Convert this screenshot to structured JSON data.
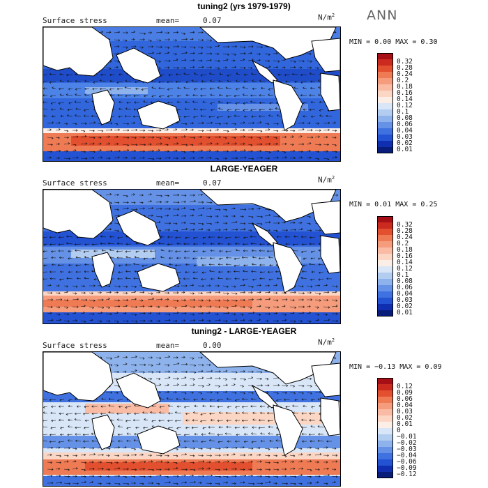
{
  "season": "ANN",
  "panels": [
    {
      "title": "tuning2 (yrs 1979-1979)",
      "variable": "Surface stress",
      "mean_label": "mean=",
      "mean": "0.07",
      "units": "N/m",
      "units_exp": "2",
      "min_label": "MIN =",
      "min": "0.00",
      "max_label": "MAX =",
      "max": "0.30",
      "colorbar": {
        "labels": [
          "0.32",
          "0.28",
          "0.24",
          "0.2",
          "0.18",
          "0.16",
          "0.14",
          "0.12",
          "0.1",
          "0.08",
          "0.06",
          "0.04",
          "0.03",
          "0.02",
          "0.01"
        ],
        "colors": [
          "#a50f15",
          "#cb2a1e",
          "#e3502f",
          "#ef7b55",
          "#f59c7d",
          "#f9bba3",
          "#fcd6c4",
          "#fbeee6",
          "#d8e6f7",
          "#b3cdf1",
          "#8db2ec",
          "#6592e6",
          "#3f72e0",
          "#2352d2",
          "#0f2fb0",
          "#081d7a"
        ]
      }
    },
    {
      "title": "LARGE-YEAGER",
      "variable": "Surface stress",
      "mean_label": "mean=",
      "mean": "0.07",
      "units": "N/m",
      "units_exp": "2",
      "min_label": "MIN =",
      "min": "0.01",
      "max_label": "MAX =",
      "max": "0.25",
      "colorbar": {
        "labels": [
          "0.32",
          "0.28",
          "0.24",
          "0.2",
          "0.18",
          "0.16",
          "0.14",
          "0.12",
          "0.1",
          "0.08",
          "0.06",
          "0.04",
          "0.03",
          "0.02",
          "0.01"
        ],
        "colors": [
          "#a50f15",
          "#cb2a1e",
          "#e3502f",
          "#ef7b55",
          "#f59c7d",
          "#f9bba3",
          "#fcd6c4",
          "#fbeee6",
          "#d8e6f7",
          "#b3cdf1",
          "#8db2ec",
          "#6592e6",
          "#3f72e0",
          "#2352d2",
          "#0f2fb0",
          "#081d7a"
        ]
      }
    },
    {
      "title": "tuning2 - LARGE-YEAGER",
      "variable": "Surface stress",
      "mean_label": "mean=",
      "mean": "0.00",
      "units": "N/m",
      "units_exp": "2",
      "min_label": "MIN =",
      "min": "−0.13",
      "max_label": "MAX =",
      "max": "0.09",
      "colorbar": {
        "labels": [
          "0.12",
          "0.09",
          "0.06",
          "0.04",
          "0.03",
          "0.02",
          "0.01",
          "0",
          "−0.01",
          "−0.02",
          "−0.03",
          "−0.04",
          "−0.06",
          "−0.09",
          "−0.12"
        ],
        "colors": [
          "#a50f15",
          "#cb2a1e",
          "#e3502f",
          "#ef7b55",
          "#f59c7d",
          "#f9bba3",
          "#fcd6c4",
          "#fbeee6",
          "#d8e6f7",
          "#b3cdf1",
          "#8db2ec",
          "#6592e6",
          "#3f72e0",
          "#2352d2",
          "#0f2fb0",
          "#081d7a"
        ]
      }
    }
  ]
}
